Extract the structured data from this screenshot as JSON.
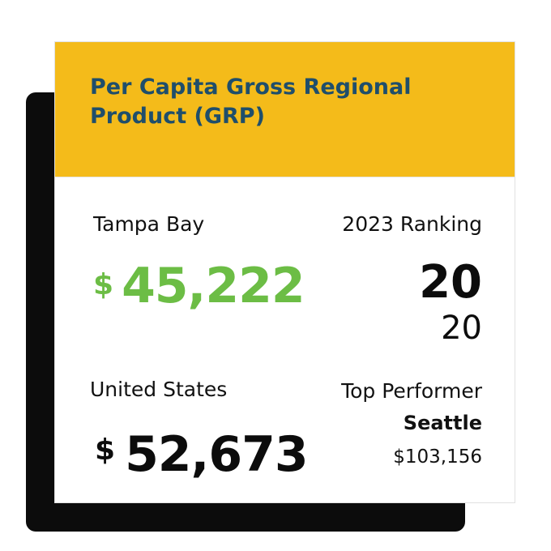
{
  "title": "Per Capita Gross Regional Product (GRP)",
  "colors": {
    "header_bg": "#f4bb1a",
    "title": "#1f4e6b",
    "accent_green": "#6cbd45",
    "shadow": "#0c0c0c"
  },
  "tampa_bay": {
    "label": "Tampa Bay",
    "currency": "$",
    "value": "45,222"
  },
  "ranking": {
    "label": "2023 Ranking",
    "rank": "20",
    "out_of": "20"
  },
  "united_states": {
    "label": "United States",
    "currency": "$",
    "value": "52,673"
  },
  "top_performer": {
    "label": "Top Performer",
    "city": "Seattle",
    "value": "$103,156"
  }
}
